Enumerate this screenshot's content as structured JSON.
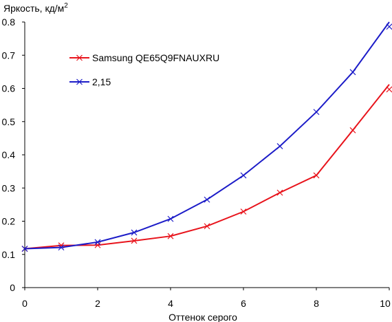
{
  "chart_data": {
    "type": "line",
    "ylabel": "Яркость, кд/м",
    "ylabel_sup": "2",
    "xlabel": "Оттенок серого",
    "xlim": [
      0,
      10
    ],
    "ylim": [
      0,
      0.8
    ],
    "xticks": [
      0,
      2,
      4,
      6,
      8,
      10
    ],
    "xtick_labels": [
      "0",
      "2",
      "4",
      "6",
      "8",
      "10"
    ],
    "yticks": [
      0,
      0.1,
      0.2,
      0.3,
      0.4,
      0.5,
      0.6,
      0.7,
      0.8
    ],
    "ytick_labels": [
      "0",
      "0.1",
      "0.2",
      "0.3",
      "0.4",
      "0.5",
      "0.6",
      "0.7",
      "0.8"
    ],
    "grid": false,
    "legend_position": "top-left",
    "x": [
      0,
      1,
      2,
      3,
      4,
      5,
      6,
      7,
      8,
      9,
      10
    ],
    "series": [
      {
        "name": "Samsung QE65Q9FNAUXRU",
        "color": "#e8131b",
        "values": [
          0.117,
          0.127,
          0.128,
          0.141,
          0.155,
          0.185,
          0.229,
          0.286,
          0.338,
          0.474,
          0.597
        ],
        "end_value": 0.612
      },
      {
        "name": "2,15",
        "color": "#1c1cc8",
        "values": [
          0.117,
          0.121,
          0.137,
          0.166,
          0.207,
          0.265,
          0.338,
          0.426,
          0.529,
          0.649,
          0.786
        ],
        "end_value": 0.8
      }
    ]
  }
}
